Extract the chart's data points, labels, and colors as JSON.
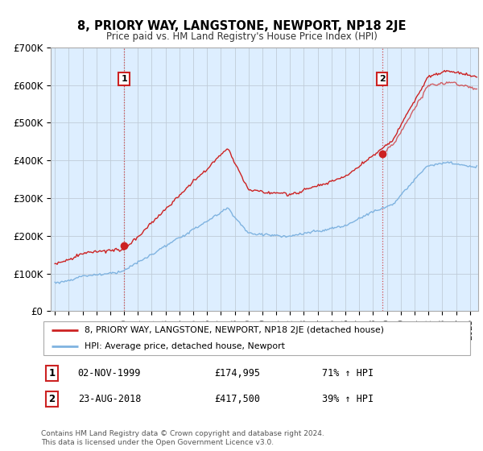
{
  "title": "8, PRIORY WAY, LANGSTONE, NEWPORT, NP18 2JE",
  "subtitle": "Price paid vs. HM Land Registry's House Price Index (HPI)",
  "hpi_color": "#7fb3e0",
  "price_color": "#cc2222",
  "bg_color": "#ddeeff",
  "transaction1": {
    "date": "02-NOV-1999",
    "price": 174995,
    "label": "1",
    "year": 2000.0
  },
  "transaction2": {
    "date": "23-AUG-2018",
    "price": 417500,
    "label": "2",
    "year": 2018.65
  },
  "legend_property": "8, PRIORY WAY, LANGSTONE, NEWPORT, NP18 2JE (detached house)",
  "legend_hpi": "HPI: Average price, detached house, Newport",
  "footer1": "Contains HM Land Registry data © Crown copyright and database right 2024.",
  "footer2": "This data is licensed under the Open Government Licence v3.0.",
  "table_rows": [
    {
      "num": "1",
      "date": "02-NOV-1999",
      "price": "£174,995",
      "change": "71% ↑ HPI"
    },
    {
      "num": "2",
      "date": "23-AUG-2018",
      "price": "£417,500",
      "change": "39% ↑ HPI"
    }
  ],
  "ylim": [
    0,
    700000
  ],
  "yticks": [
    0,
    100000,
    200000,
    300000,
    400000,
    500000,
    600000,
    700000
  ],
  "ytick_labels": [
    "£0",
    "£100K",
    "£200K",
    "£300K",
    "£400K",
    "£500K",
    "£600K",
    "£700K"
  ]
}
